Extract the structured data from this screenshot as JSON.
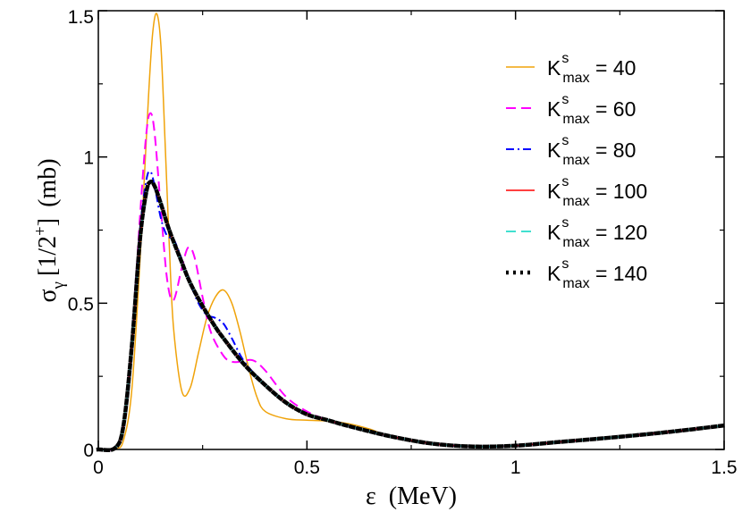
{
  "chart_data": {
    "type": "line",
    "xlabel": {
      "symbol": "ε",
      "unit": "(MeV)"
    },
    "ylabel": {
      "symbol": "σ",
      "subscript": "γ",
      "bracket_open": "[1/2",
      "superscript": "+",
      "bracket_close": "]",
      "unit": "(mb)"
    },
    "xlim": [
      0,
      1.5
    ],
    "ylim": [
      0,
      1.5
    ],
    "x_ticks": [
      0,
      0.5,
      1,
      1.5
    ],
    "x_tick_labels": [
      "0",
      "0.5",
      "1",
      "1.5"
    ],
    "y_ticks": [
      0,
      0.5,
      1,
      1.5
    ],
    "y_tick_labels": [
      "0",
      "0.5",
      "1",
      "1.5"
    ],
    "grid": false,
    "legend_position": "top-right",
    "series": [
      {
        "name": "K^s_max = 40",
        "label": {
          "base": "K",
          "sup": "s",
          "sub": "max",
          "rest": " = 40"
        },
        "color": "#f0a30a",
        "dash": "solid",
        "x": [
          0,
          0.04,
          0.06,
          0.08,
          0.1,
          0.12,
          0.13,
          0.14,
          0.15,
          0.16,
          0.17,
          0.18,
          0.2,
          0.22,
          0.24,
          0.26,
          0.28,
          0.3,
          0.32,
          0.34,
          0.36,
          0.38,
          0.4,
          0.45,
          0.5,
          0.55,
          0.6,
          0.65,
          0.7,
          0.8,
          0.9,
          1.0,
          1.1,
          1.2,
          1.3,
          1.4,
          1.5
        ],
        "y": [
          0,
          0.003,
          0.03,
          0.2,
          0.65,
          1.2,
          1.42,
          1.49,
          1.38,
          1.05,
          0.7,
          0.42,
          0.2,
          0.21,
          0.33,
          0.45,
          0.52,
          0.545,
          0.5,
          0.4,
          0.28,
          0.18,
          0.13,
          0.105,
          0.1,
          0.097,
          0.088,
          0.07,
          0.045,
          0.02,
          0.01,
          0.013,
          0.025,
          0.037,
          0.05,
          0.065,
          0.082
        ]
      },
      {
        "name": "K^s_max = 60",
        "label": {
          "base": "K",
          "sup": "s",
          "sub": "max",
          "rest": " = 60"
        },
        "color": "#ff00ff",
        "dash": "dashed",
        "x": [
          0,
          0.04,
          0.06,
          0.08,
          0.1,
          0.115,
          0.125,
          0.135,
          0.15,
          0.165,
          0.18,
          0.2,
          0.215,
          0.23,
          0.25,
          0.27,
          0.3,
          0.32,
          0.34,
          0.37,
          0.4,
          0.45,
          0.5,
          0.55,
          0.6,
          0.7,
          0.8,
          0.9,
          1.0,
          1.1,
          1.2,
          1.3,
          1.4,
          1.5
        ],
        "y": [
          0,
          0.005,
          0.08,
          0.35,
          0.8,
          1.08,
          1.15,
          1.08,
          0.82,
          0.58,
          0.51,
          0.62,
          0.69,
          0.66,
          0.52,
          0.4,
          0.32,
          0.3,
          0.3,
          0.305,
          0.27,
          0.18,
          0.13,
          0.1,
          0.08,
          0.045,
          0.02,
          0.01,
          0.013,
          0.025,
          0.037,
          0.05,
          0.065,
          0.082
        ]
      },
      {
        "name": "K^s_max = 80",
        "label": {
          "base": "K",
          "sup": "s",
          "sub": "max",
          "rest": " = 80"
        },
        "color": "#0000ff",
        "dash": "dashdot",
        "x": [
          0,
          0.04,
          0.06,
          0.08,
          0.1,
          0.115,
          0.125,
          0.135,
          0.15,
          0.165,
          0.18,
          0.2,
          0.22,
          0.24,
          0.26,
          0.28,
          0.3,
          0.32,
          0.35,
          0.4,
          0.45,
          0.5,
          0.55,
          0.6,
          0.7,
          0.8,
          0.9,
          1.0,
          1.1,
          1.2,
          1.3,
          1.4,
          1.5
        ],
        "y": [
          0,
          0.005,
          0.08,
          0.35,
          0.75,
          0.92,
          0.95,
          0.9,
          0.79,
          0.73,
          0.72,
          0.65,
          0.57,
          0.5,
          0.46,
          0.45,
          0.43,
          0.38,
          0.3,
          0.22,
          0.16,
          0.12,
          0.1,
          0.08,
          0.045,
          0.02,
          0.01,
          0.013,
          0.025,
          0.037,
          0.05,
          0.065,
          0.082
        ]
      },
      {
        "name": "K^s_max = 100",
        "label": {
          "base": "K",
          "sup": "s",
          "sub": "max",
          "rest": " = 100"
        },
        "color": "#ff0000",
        "dash": "solid",
        "x": [
          0,
          0.04,
          0.06,
          0.08,
          0.1,
          0.115,
          0.125,
          0.135,
          0.15,
          0.17,
          0.2,
          0.22,
          0.25,
          0.28,
          0.3,
          0.35,
          0.4,
          0.45,
          0.5,
          0.55,
          0.6,
          0.7,
          0.8,
          0.9,
          1.0,
          1.1,
          1.2,
          1.3,
          1.4,
          1.5
        ],
        "y": [
          0,
          0.005,
          0.08,
          0.35,
          0.72,
          0.88,
          0.915,
          0.9,
          0.84,
          0.75,
          0.64,
          0.57,
          0.49,
          0.42,
          0.38,
          0.29,
          0.22,
          0.16,
          0.12,
          0.1,
          0.08,
          0.045,
          0.02,
          0.01,
          0.013,
          0.025,
          0.037,
          0.05,
          0.065,
          0.082
        ]
      },
      {
        "name": "K^s_max = 120",
        "label": {
          "base": "K",
          "sup": "s",
          "sub": "max",
          "rest": " = 120"
        },
        "color": "#40e0d0",
        "dash": "dashed",
        "x": [
          0,
          0.04,
          0.06,
          0.08,
          0.1,
          0.115,
          0.125,
          0.135,
          0.15,
          0.17,
          0.2,
          0.22,
          0.25,
          0.28,
          0.3,
          0.35,
          0.4,
          0.45,
          0.5,
          0.55,
          0.6,
          0.7,
          0.8,
          0.9,
          1.0,
          1.1,
          1.2,
          1.3,
          1.4,
          1.5
        ],
        "y": [
          0,
          0.005,
          0.08,
          0.35,
          0.72,
          0.87,
          0.91,
          0.9,
          0.84,
          0.75,
          0.64,
          0.57,
          0.49,
          0.42,
          0.38,
          0.29,
          0.22,
          0.16,
          0.12,
          0.1,
          0.08,
          0.045,
          0.02,
          0.01,
          0.013,
          0.025,
          0.037,
          0.05,
          0.065,
          0.082
        ]
      },
      {
        "name": "K^s_max = 140",
        "label": {
          "base": "K",
          "sup": "s",
          "sub": "max",
          "rest": " = 140"
        },
        "color": "#000000",
        "dash": "dotted",
        "x": [
          0,
          0.04,
          0.06,
          0.08,
          0.1,
          0.115,
          0.125,
          0.135,
          0.15,
          0.17,
          0.2,
          0.22,
          0.25,
          0.28,
          0.3,
          0.35,
          0.4,
          0.45,
          0.5,
          0.55,
          0.6,
          0.7,
          0.8,
          0.9,
          1.0,
          1.1,
          1.2,
          1.3,
          1.4,
          1.5
        ],
        "y": [
          0,
          0.005,
          0.08,
          0.35,
          0.72,
          0.88,
          0.915,
          0.9,
          0.84,
          0.75,
          0.64,
          0.57,
          0.49,
          0.42,
          0.38,
          0.29,
          0.22,
          0.16,
          0.12,
          0.1,
          0.08,
          0.045,
          0.02,
          0.01,
          0.013,
          0.025,
          0.037,
          0.05,
          0.065,
          0.082
        ]
      }
    ]
  }
}
